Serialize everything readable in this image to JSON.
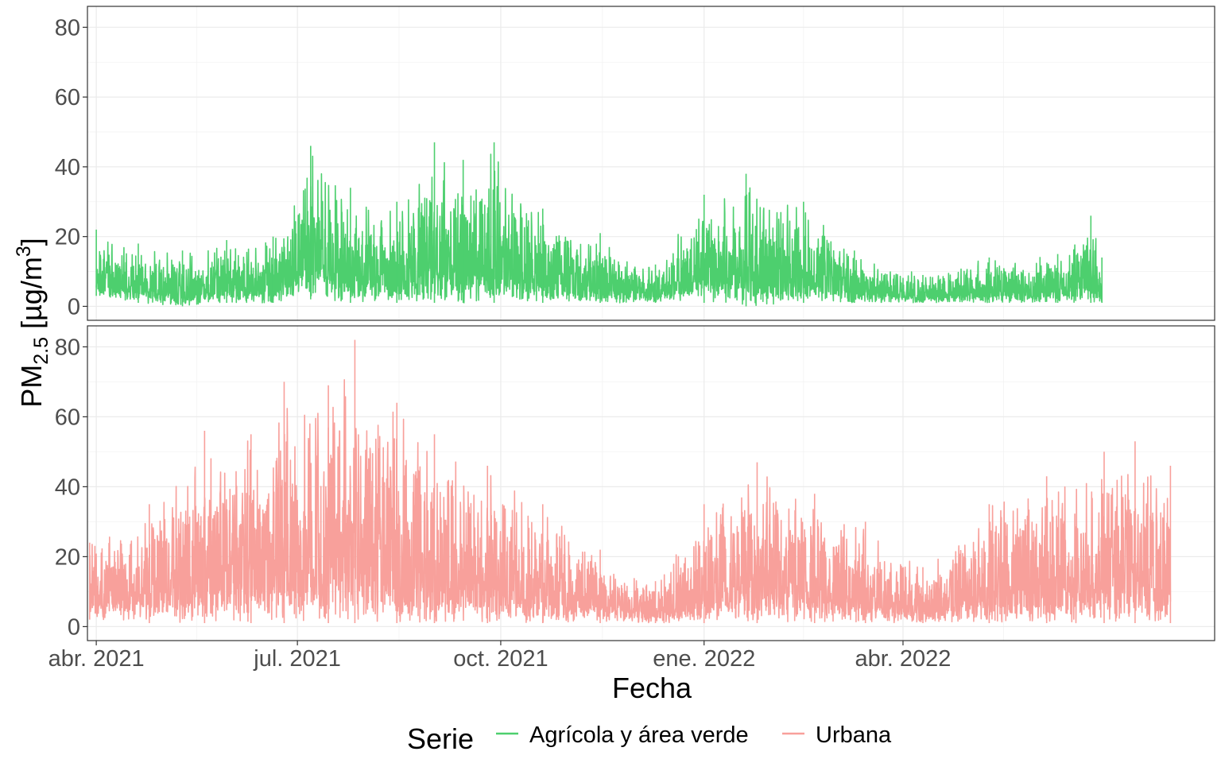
{
  "chart_data": {
    "type": "line",
    "layout": "two stacked panels with shared x axis",
    "xlabel": "Fecha",
    "ylabel_main": "PM",
    "ylabel_sub": "2.5",
    "ylabel_unit_pre": " [µg/m",
    "ylabel_unit_sup": "3",
    "ylabel_unit_post": "]",
    "x_range": [
      "2021-03-28",
      "2022-08-20"
    ],
    "x_ticks": [
      {
        "date": "2021-04-01",
        "label": "abr. 2021"
      },
      {
        "date": "2021-07-01",
        "label": "jul. 2021"
      },
      {
        "date": "2021-10-01",
        "label": "oct. 2021"
      },
      {
        "date": "2022-01-01",
        "label": "ene. 2022"
      },
      {
        "date": "2022-04-01",
        "label": "abr. 2022"
      }
    ],
    "ylim": [
      -4,
      86
    ],
    "y_ticks": [
      0,
      20,
      40,
      60,
      80
    ],
    "grid": true,
    "legend": {
      "title": "Serie",
      "position": "bottom",
      "entries": [
        "Agrícola y área verde",
        "Urbana"
      ]
    },
    "series": [
      {
        "name": "Agrícola y área verde",
        "panel": 1,
        "color": "#4dcf6e",
        "data_start": "2021-04-01",
        "data_end": "2022-06-30",
        "envelope": [
          {
            "date": "2021-04-01",
            "lo": 3,
            "hi": 22
          },
          {
            "date": "2021-04-20",
            "lo": 1,
            "hi": 18
          },
          {
            "date": "2021-05-10",
            "lo": 0,
            "hi": 16
          },
          {
            "date": "2021-05-30",
            "lo": 1,
            "hi": 19
          },
          {
            "date": "2021-06-20",
            "lo": 1,
            "hi": 20
          },
          {
            "date": "2021-07-07",
            "lo": 2,
            "hi": 46
          },
          {
            "date": "2021-07-25",
            "lo": 1,
            "hi": 34
          },
          {
            "date": "2021-08-15",
            "lo": 1,
            "hi": 30
          },
          {
            "date": "2021-09-01",
            "lo": 1,
            "hi": 47
          },
          {
            "date": "2021-09-14",
            "lo": 1,
            "hi": 42
          },
          {
            "date": "2021-09-28",
            "lo": 1,
            "hi": 47
          },
          {
            "date": "2021-10-20",
            "lo": 1,
            "hi": 28
          },
          {
            "date": "2021-11-15",
            "lo": 1,
            "hi": 21
          },
          {
            "date": "2021-12-10",
            "lo": 1,
            "hi": 12
          },
          {
            "date": "2022-01-01",
            "lo": 1,
            "hi": 32
          },
          {
            "date": "2022-01-20",
            "lo": 0,
            "hi": 38
          },
          {
            "date": "2022-02-15",
            "lo": 1,
            "hi": 30
          },
          {
            "date": "2022-03-10",
            "lo": 1,
            "hi": 16
          },
          {
            "date": "2022-04-10",
            "lo": 1,
            "hi": 9
          },
          {
            "date": "2022-05-10",
            "lo": 1,
            "hi": 14
          },
          {
            "date": "2022-06-10",
            "lo": 1,
            "hi": 15
          },
          {
            "date": "2022-06-25",
            "lo": 1,
            "hi": 26
          },
          {
            "date": "2022-06-30",
            "lo": 1,
            "hi": 14
          }
        ]
      },
      {
        "name": "Urbana",
        "panel": 2,
        "color": "#f8a09b",
        "data_start": "2021-03-29",
        "data_end": "2022-07-31",
        "envelope": [
          {
            "date": "2021-03-29",
            "lo": 2,
            "hi": 24
          },
          {
            "date": "2021-04-25",
            "lo": 1,
            "hi": 35
          },
          {
            "date": "2021-05-20",
            "lo": 1,
            "hi": 56
          },
          {
            "date": "2021-06-10",
            "lo": 1,
            "hi": 55
          },
          {
            "date": "2021-06-25",
            "lo": 1,
            "hi": 70
          },
          {
            "date": "2021-07-15",
            "lo": 1,
            "hi": 69
          },
          {
            "date": "2021-07-27",
            "lo": 1,
            "hi": 82
          },
          {
            "date": "2021-08-15",
            "lo": 1,
            "hi": 64
          },
          {
            "date": "2021-09-01",
            "lo": 1,
            "hi": 55
          },
          {
            "date": "2021-09-25",
            "lo": 1,
            "hi": 46
          },
          {
            "date": "2021-10-20",
            "lo": 1,
            "hi": 35
          },
          {
            "date": "2021-11-15",
            "lo": 1,
            "hi": 22
          },
          {
            "date": "2021-12-10",
            "lo": 1,
            "hi": 13
          },
          {
            "date": "2022-01-01",
            "lo": 1,
            "hi": 35
          },
          {
            "date": "2022-01-25",
            "lo": 1,
            "hi": 47
          },
          {
            "date": "2022-02-20",
            "lo": 1,
            "hi": 38
          },
          {
            "date": "2022-03-15",
            "lo": 1,
            "hi": 30
          },
          {
            "date": "2022-04-10",
            "lo": 1,
            "hi": 17
          },
          {
            "date": "2022-05-10",
            "lo": 1,
            "hi": 35
          },
          {
            "date": "2022-06-05",
            "lo": 1,
            "hi": 43
          },
          {
            "date": "2022-07-01",
            "lo": 1,
            "hi": 50
          },
          {
            "date": "2022-07-15",
            "lo": 1,
            "hi": 53
          },
          {
            "date": "2022-07-31",
            "lo": 1,
            "hi": 46
          }
        ]
      }
    ]
  }
}
